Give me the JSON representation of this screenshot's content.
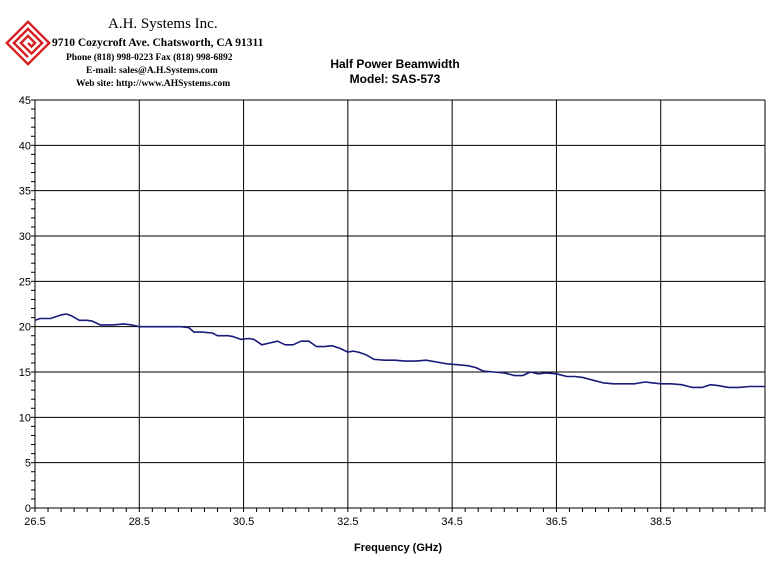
{
  "header": {
    "company": "A.H. Systems Inc.",
    "address": "9710 Cozycroft Ave. Chatsworth, CA 91311",
    "phone": "Phone (818) 998-0223 Fax (818) 998-6892",
    "email": "E-mail:  sales@A.H.Systems.com",
    "website": "Web site:  http://www.AHSystems.com"
  },
  "colors": {
    "line": "#1a1a7a",
    "logo": "#d42020",
    "grid": "#000000"
  },
  "chart_data": {
    "type": "line",
    "title": "Half Power Beamwidth",
    "subtitle": "Model: SAS-573",
    "xlabel": "Frequency (GHz)",
    "ylabel": "",
    "xlim": [
      26.5,
      40.5
    ],
    "ylim": [
      0,
      45
    ],
    "xticks": [
      26.5,
      28.5,
      30.5,
      32.5,
      34.5,
      36.5,
      38.5
    ],
    "xtick_labels": [
      "26.5",
      "28.5",
      "30.5",
      "32.5",
      "34.5",
      "36.5",
      "38.5"
    ],
    "yticks": [
      0,
      5,
      10,
      15,
      20,
      25,
      30,
      35,
      40,
      45
    ],
    "ytick_labels": [
      "0",
      "5",
      "10",
      "15",
      "20",
      "25",
      "30",
      "35",
      "40",
      "45"
    ],
    "grid": true,
    "legend": "none",
    "series": [
      {
        "x": [
          26.5,
          26.6,
          26.8,
          27.0,
          27.1,
          27.2,
          27.35,
          27.5,
          27.6,
          27.75,
          27.9,
          28.0,
          28.2,
          28.35,
          28.5,
          28.7,
          28.9,
          29.1,
          29.3,
          29.45,
          29.55,
          29.7,
          29.9,
          30.0,
          30.2,
          30.3,
          30.45,
          30.6,
          30.7,
          30.85,
          31.0,
          31.15,
          31.3,
          31.45,
          31.6,
          31.75,
          31.9,
          32.05,
          32.2,
          32.35,
          32.5,
          32.6,
          32.7,
          32.85,
          33.0,
          33.2,
          33.4,
          33.6,
          33.8,
          34.0,
          34.2,
          34.4,
          34.6,
          34.8,
          34.95,
          35.1,
          35.3,
          35.5,
          35.7,
          35.85,
          36.0,
          36.15,
          36.3,
          36.5,
          36.7,
          36.85,
          37.0,
          37.2,
          37.4,
          37.6,
          37.8,
          38.0,
          38.2,
          38.35,
          38.5,
          38.7,
          38.9,
          39.1,
          39.3,
          39.45,
          39.6,
          39.8,
          40.0,
          40.2,
          40.5
        ],
        "y": [
          20.7,
          20.9,
          20.9,
          21.3,
          21.4,
          21.2,
          20.7,
          20.7,
          20.6,
          20.2,
          20.2,
          20.2,
          20.3,
          20.2,
          20.0,
          20.0,
          20.0,
          20.0,
          20.0,
          19.9,
          19.4,
          19.4,
          19.3,
          19.0,
          19.0,
          18.9,
          18.6,
          18.7,
          18.6,
          18.0,
          18.2,
          18.4,
          18.0,
          18.0,
          18.4,
          18.4,
          17.8,
          17.8,
          17.9,
          17.6,
          17.2,
          17.3,
          17.2,
          16.9,
          16.4,
          16.3,
          16.3,
          16.2,
          16.2,
          16.3,
          16.1,
          15.9,
          15.8,
          15.7,
          15.5,
          15.1,
          15.0,
          14.9,
          14.6,
          14.6,
          15.0,
          14.8,
          14.9,
          14.8,
          14.5,
          14.5,
          14.4,
          14.1,
          13.8,
          13.7,
          13.7,
          13.7,
          13.9,
          13.8,
          13.7,
          13.7,
          13.6,
          13.3,
          13.3,
          13.6,
          13.5,
          13.3,
          13.3,
          13.4,
          13.4
        ]
      }
    ]
  }
}
